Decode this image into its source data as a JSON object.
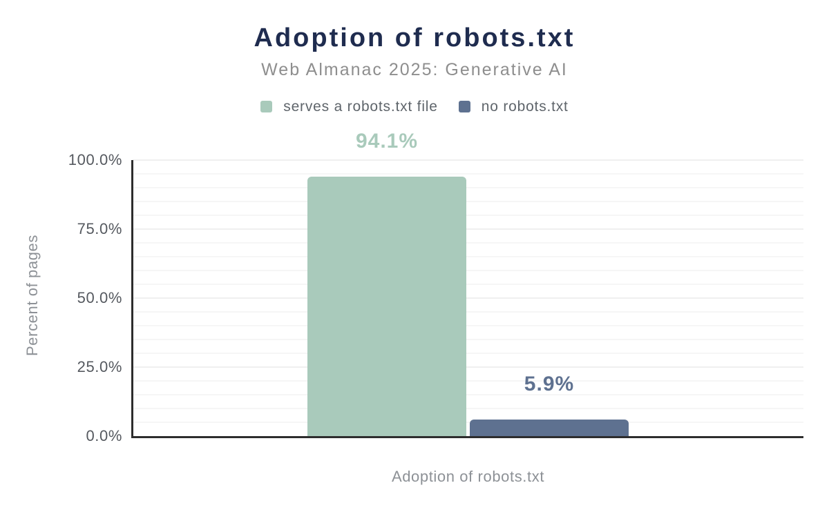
{
  "chart_data": {
    "type": "bar",
    "title": "Adoption of robots.txt",
    "subtitle": "Web Almanac 2025: Generative AI",
    "xlabel": "Adoption of robots.txt",
    "ylabel": "Percent of pages",
    "ylim": [
      0,
      100
    ],
    "y_unit": "%",
    "y_major_step": 25,
    "y_minor_step": 5,
    "grid": "horizontal",
    "legend_position": "top",
    "categories": [
      "Adoption of robots.txt"
    ],
    "y_ticks": [
      {
        "value": 0,
        "label": "0.0%"
      },
      {
        "value": 25,
        "label": "25.0%"
      },
      {
        "value": 50,
        "label": "50.0%"
      },
      {
        "value": 75,
        "label": "75.0%"
      },
      {
        "value": 100,
        "label": "100.0%"
      }
    ],
    "series": [
      {
        "name": "serves a robots.txt file",
        "values": [
          94.1
        ],
        "data_label": "94.1%",
        "color": "#a9cabb"
      },
      {
        "name": "no robots.txt",
        "values": [
          5.9
        ],
        "data_label": "5.9%",
        "color": "#5e7190"
      }
    ]
  },
  "colors": {
    "background": "#ffffff",
    "title": "#1f2c4f",
    "subtitle": "#8e8e8e",
    "legend_text": "#5f656b",
    "tick_text": "#55595f",
    "axis_title_text": "#8d9196",
    "axis_line": "#2d2d2d",
    "gridline_minor": "#f6f6f6",
    "gridline_major": "#efefef",
    "series_green": "#a9cabb",
    "series_slate": "#5e7190"
  }
}
